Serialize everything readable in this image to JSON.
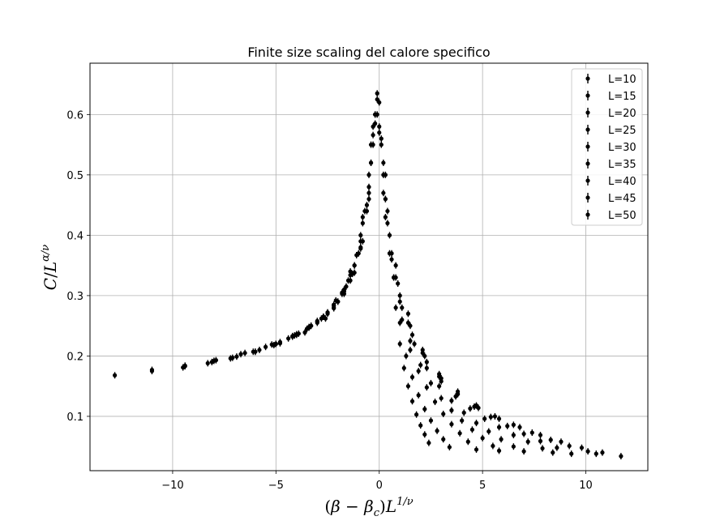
{
  "chart_data": {
    "type": "scatter",
    "title": "Finite size scaling del calore specifico",
    "xlabel": "(β − βc)L^(1/ν)",
    "ylabel": "C/L^(α/ν)",
    "xlim": [
      -14.0,
      13.0
    ],
    "ylim": [
      0.01,
      0.685
    ],
    "x_ticks": [
      -10,
      -5,
      0,
      5,
      10
    ],
    "x_tick_labels": [
      "−10",
      "−5",
      "0",
      "5",
      "10"
    ],
    "y_ticks": [
      0.1,
      0.2,
      0.3,
      0.4,
      0.5,
      0.6
    ],
    "y_tick_labels": [
      "0.1",
      "0.2",
      "0.3",
      "0.4",
      "0.5",
      "0.6"
    ],
    "grid": true,
    "legend_position": "top-right",
    "marker_color": "#000000",
    "series": [
      {
        "name": "L=10",
        "x": [
          -2.6,
          -2.2,
          -1.8,
          -1.4,
          -1.1,
          -0.8,
          -0.5,
          -0.3,
          -0.1,
          0.1,
          0.3,
          0.5,
          0.8,
          1.0,
          1.2,
          1.4,
          1.6,
          1.8,
          2.0,
          2.2,
          2.4
        ],
        "y": [
          0.262,
          0.279,
          0.303,
          0.334,
          0.367,
          0.42,
          0.5,
          0.566,
          0.6,
          0.55,
          0.46,
          0.37,
          0.28,
          0.22,
          0.18,
          0.15,
          0.125,
          0.103,
          0.085,
          0.07,
          0.056
        ]
      },
      {
        "name": "L=15",
        "x": [
          -3.6,
          -3.0,
          -2.5,
          -2.0,
          -1.6,
          -1.2,
          -0.9,
          -0.6,
          -0.4,
          -0.2,
          0.0,
          0.2,
          0.4,
          0.7,
          1.0,
          1.3,
          1.6,
          1.9,
          2.2,
          2.5,
          2.8,
          3.1,
          3.4
        ],
        "y": [
          0.239,
          0.255,
          0.27,
          0.29,
          0.315,
          0.35,
          0.39,
          0.45,
          0.52,
          0.585,
          0.62,
          0.52,
          0.42,
          0.33,
          0.255,
          0.2,
          0.165,
          0.135,
          0.112,
          0.093,
          0.076,
          0.062,
          0.049
        ]
      },
      {
        "name": "L=20",
        "x": [
          -4.8,
          -4.0,
          -3.3,
          -2.7,
          -2.2,
          -1.7,
          -1.3,
          -0.9,
          -0.6,
          -0.3,
          0.0,
          0.3,
          0.7,
          1.1,
          1.5,
          1.9,
          2.3,
          2.7,
          3.1,
          3.5,
          3.9,
          4.3,
          4.7
        ],
        "y": [
          0.221,
          0.235,
          0.25,
          0.265,
          0.283,
          0.307,
          0.336,
          0.378,
          0.44,
          0.55,
          0.57,
          0.43,
          0.33,
          0.26,
          0.21,
          0.175,
          0.148,
          0.124,
          0.104,
          0.087,
          0.072,
          0.058,
          0.045
        ]
      },
      {
        "name": "L=25",
        "x": [
          -6.0,
          -5.0,
          -4.2,
          -3.5,
          -2.8,
          -2.2,
          -1.7,
          -1.2,
          -0.8,
          -0.5,
          -0.2,
          0.2,
          0.6,
          1.0,
          1.5,
          2.0,
          2.5,
          3.0,
          3.5,
          4.0,
          4.5,
          5.0,
          5.5,
          5.8
        ],
        "y": [
          0.207,
          0.22,
          0.233,
          0.245,
          0.262,
          0.28,
          0.303,
          0.338,
          0.39,
          0.46,
          0.6,
          0.5,
          0.37,
          0.29,
          0.225,
          0.185,
          0.155,
          0.13,
          0.11,
          0.093,
          0.078,
          0.064,
          0.051,
          0.043
        ]
      },
      {
        "name": "L=30",
        "x": [
          -7.2,
          -6.1,
          -5.1,
          -4.2,
          -3.4,
          -2.7,
          -2.0,
          -1.4,
          -0.9,
          -0.5,
          -0.2,
          0.2,
          0.6,
          1.1,
          1.7,
          2.3,
          2.9,
          3.5,
          4.1,
          4.7,
          5.3,
          5.9,
          6.5,
          7.0
        ],
        "y": [
          0.196,
          0.207,
          0.218,
          0.232,
          0.248,
          0.265,
          0.29,
          0.325,
          0.38,
          0.47,
          0.6,
          0.47,
          0.36,
          0.28,
          0.22,
          0.18,
          0.15,
          0.126,
          0.106,
          0.089,
          0.075,
          0.062,
          0.05,
          0.042
        ]
      },
      {
        "name": "L=35",
        "x": [
          -8.3,
          -7.1,
          -6.0,
          -5.0,
          -4.1,
          -3.3,
          -2.5,
          -1.8,
          -1.2,
          -0.7,
          -0.3,
          0.1,
          0.5,
          1.0,
          1.6,
          2.3,
          3.0,
          3.7,
          4.4,
          5.1,
          5.8,
          6.5,
          7.2,
          7.9,
          8.4
        ],
        "y": [
          0.188,
          0.197,
          0.207,
          0.22,
          0.234,
          0.25,
          0.272,
          0.305,
          0.35,
          0.44,
          0.58,
          0.56,
          0.4,
          0.3,
          0.235,
          0.19,
          0.158,
          0.133,
          0.113,
          0.096,
          0.082,
          0.069,
          0.058,
          0.047,
          0.04
        ]
      },
      {
        "name": "L=40",
        "x": [
          -9.5,
          -8.1,
          -6.9,
          -5.8,
          -4.8,
          -3.9,
          -3.0,
          -2.2,
          -1.5,
          -0.9,
          -0.4,
          0.0,
          0.4,
          0.9,
          1.5,
          2.2,
          3.0,
          3.8,
          4.6,
          5.4,
          6.2,
          7.0,
          7.8,
          8.6,
          9.3
        ],
        "y": [
          0.181,
          0.19,
          0.199,
          0.21,
          0.223,
          0.237,
          0.257,
          0.285,
          0.325,
          0.4,
          0.52,
          0.58,
          0.44,
          0.32,
          0.25,
          0.2,
          0.163,
          0.137,
          0.116,
          0.099,
          0.084,
          0.071,
          0.059,
          0.048,
          0.038
        ]
      },
      {
        "name": "L=45",
        "x": [
          -11.0,
          -9.4,
          -8.0,
          -6.7,
          -5.5,
          -4.4,
          -3.4,
          -2.5,
          -1.7,
          -1.0,
          -0.5,
          -0.1,
          0.3,
          0.8,
          1.4,
          2.1,
          2.9,
          3.8,
          4.7,
          5.6,
          6.5,
          7.4,
          8.3,
          9.2,
          10.1,
          10.5
        ],
        "y": [
          0.177,
          0.184,
          0.192,
          0.203,
          0.215,
          0.229,
          0.247,
          0.272,
          0.31,
          0.37,
          0.48,
          0.635,
          0.5,
          0.35,
          0.27,
          0.21,
          0.17,
          0.141,
          0.118,
          0.1,
          0.086,
          0.073,
          0.061,
          0.051,
          0.042,
          0.038
        ]
      },
      {
        "name": "L=50",
        "x": [
          -12.8,
          -11.0,
          -9.4,
          -7.9,
          -6.5,
          -5.2,
          -4.0,
          -3.0,
          -2.1,
          -1.4,
          -0.8,
          -0.4,
          -0.1,
          0.3,
          0.8,
          1.4,
          2.1,
          2.9,
          3.8,
          4.8,
          5.8,
          6.8,
          7.8,
          8.8,
          9.8,
          10.8,
          11.7
        ],
        "y": [
          0.168,
          0.175,
          0.183,
          0.193,
          0.205,
          0.219,
          0.236,
          0.258,
          0.292,
          0.34,
          0.43,
          0.55,
          0.625,
          0.46,
          0.33,
          0.255,
          0.205,
          0.166,
          0.137,
          0.114,
          0.096,
          0.082,
          0.069,
          0.058,
          0.048,
          0.04,
          0.034
        ]
      }
    ]
  }
}
